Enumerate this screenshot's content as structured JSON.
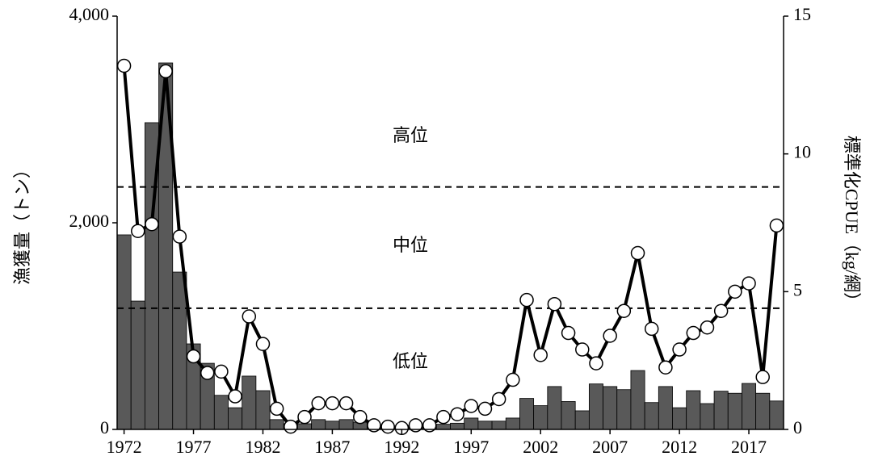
{
  "chart_data": {
    "type": "combo",
    "x": [
      1972,
      1973,
      1974,
      1975,
      1976,
      1977,
      1978,
      1979,
      1980,
      1981,
      1982,
      1983,
      1984,
      1985,
      1986,
      1987,
      1988,
      1989,
      1990,
      1991,
      1992,
      1993,
      1994,
      1995,
      1996,
      1997,
      1998,
      1999,
      2000,
      2001,
      2002,
      2003,
      2004,
      2005,
      2006,
      2007,
      2008,
      2009,
      2010,
      2011,
      2012,
      2013,
      2014,
      2015,
      2016,
      2017,
      2018,
      2019
    ],
    "series": [
      {
        "type": "bar",
        "color": "#595959",
        "values": [
          1883,
          1242,
          2969,
          3547,
          1523,
          828,
          640,
          330,
          210,
          516,
          375,
          95,
          55,
          55,
          95,
          80,
          95,
          70,
          15,
          10,
          10,
          15,
          30,
          50,
          60,
          110,
          80,
          80,
          110,
          300,
          230,
          415,
          270,
          180,
          440,
          415,
          385,
          570,
          260,
          415,
          210,
          375,
          250,
          370,
          350,
          445,
          350,
          275
        ]
      },
      {
        "type": "line",
        "axis": "y2",
        "color": "#000000",
        "values": [
          13.2,
          7.2,
          7.45,
          13.0,
          7.0,
          2.65,
          2.05,
          2.1,
          1.2,
          4.1,
          3.1,
          0.75,
          0.1,
          0.45,
          0.95,
          0.95,
          0.95,
          0.45,
          0.15,
          0.1,
          0.05,
          0.15,
          0.15,
          0.45,
          0.55,
          0.85,
          0.75,
          1.1,
          1.8,
          4.7,
          2.7,
          4.55,
          3.5,
          2.9,
          2.4,
          3.4,
          4.3,
          6.4,
          3.65,
          2.25,
          2.9,
          3.5,
          3.7,
          4.3,
          5.0,
          5.3,
          1.9,
          7.4
        ]
      }
    ],
    "thresholds": [
      8.8,
      4.4
    ],
    "zone_labels": [
      "高位",
      "中位",
      "低位"
    ],
    "y_label": "漁獲量（トン）",
    "y2_label": "標準化CPUE（kg/網）",
    "xlim": [
      1971.5,
      2019.5
    ],
    "xticks": [
      1972,
      1977,
      1982,
      1987,
      1992,
      1997,
      2002,
      2007,
      2012,
      2017
    ],
    "ylim": [
      0,
      4000
    ],
    "yticks": [
      0,
      {
        "value": 2000,
        "label": "2,000"
      },
      {
        "value": 4000,
        "label": "4,000"
      }
    ],
    "y2lim": [
      0,
      15
    ],
    "y2ticks": [
      0,
      5,
      10,
      15
    ]
  }
}
